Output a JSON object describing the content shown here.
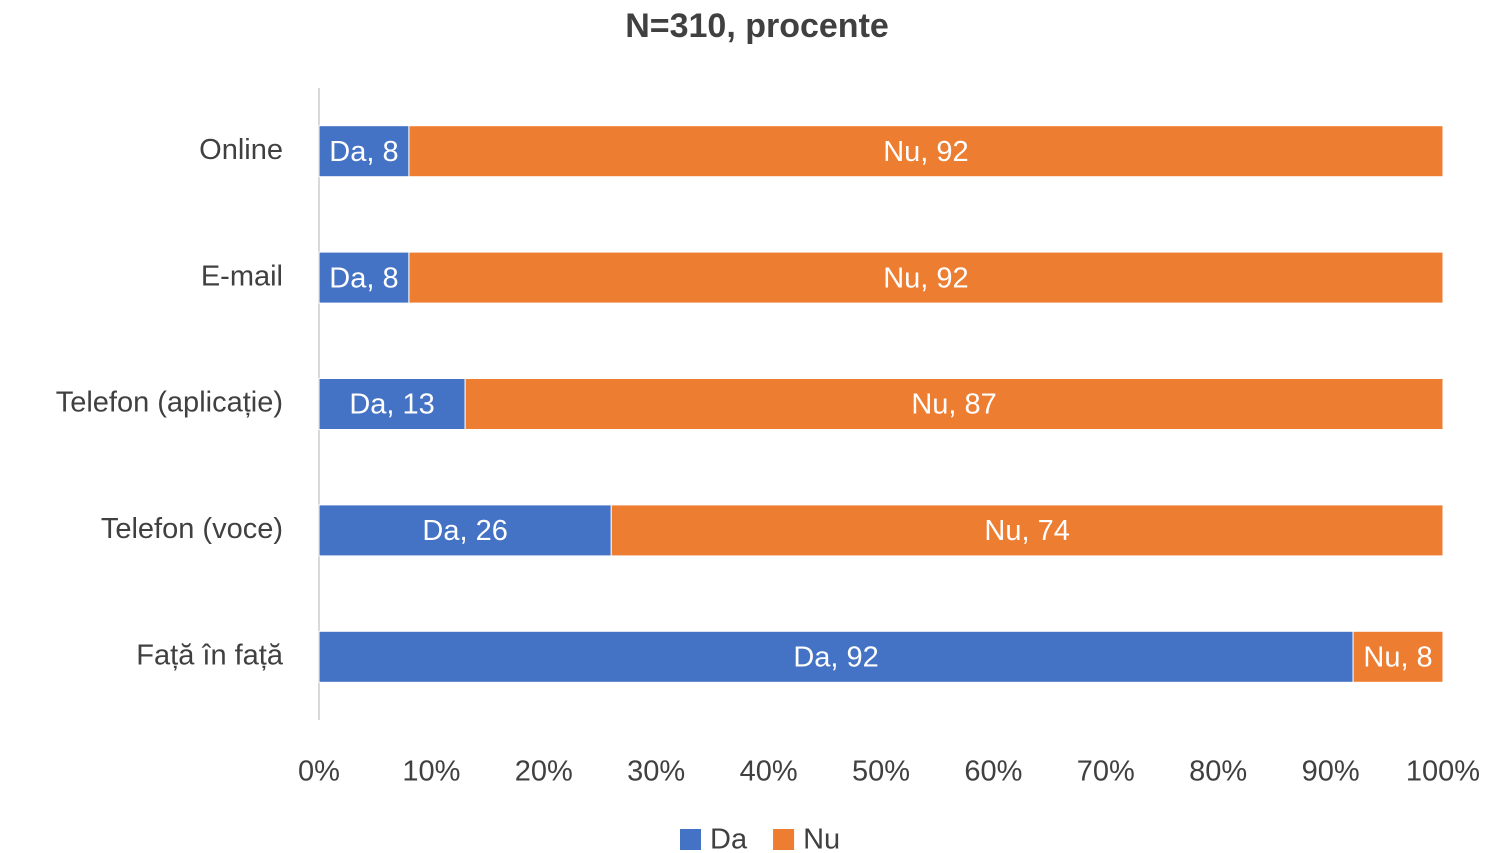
{
  "chart_data": {
    "type": "stacked_bar_horizontal",
    "title": "N=310, procente",
    "categories": [
      "Online",
      "E-mail",
      "Telefon (aplicație)",
      "Telefon (voce)",
      "Față în față"
    ],
    "series": [
      {
        "name": "Da",
        "color": "#4472c4",
        "values": [
          8,
          8,
          13,
          26,
          92
        ],
        "value_labels": [
          "Da, 8",
          "Da, 8",
          "Da, 13",
          "Da, 26",
          "Da, 92"
        ]
      },
      {
        "name": "Nu",
        "color": "#ed7d31",
        "values": [
          92,
          92,
          87,
          74,
          8
        ],
        "value_labels": [
          "Nu, 92",
          "Nu, 92",
          "Nu, 87",
          "Nu, 74",
          "Nu, 8"
        ]
      }
    ],
    "xlim": [
      0,
      100
    ],
    "xticks": [
      {
        "value": 0,
        "label": "0%"
      },
      {
        "value": 10,
        "label": "10%"
      },
      {
        "value": 20,
        "label": "20%"
      },
      {
        "value": 30,
        "label": "30%"
      },
      {
        "value": 40,
        "label": "40%"
      },
      {
        "value": 50,
        "label": "50%"
      },
      {
        "value": 60,
        "label": "60%"
      },
      {
        "value": 70,
        "label": "70%"
      },
      {
        "value": 80,
        "label": "80%"
      },
      {
        "value": 90,
        "label": "90%"
      },
      {
        "value": 100,
        "label": "100%"
      }
    ],
    "legend": "bottom"
  }
}
